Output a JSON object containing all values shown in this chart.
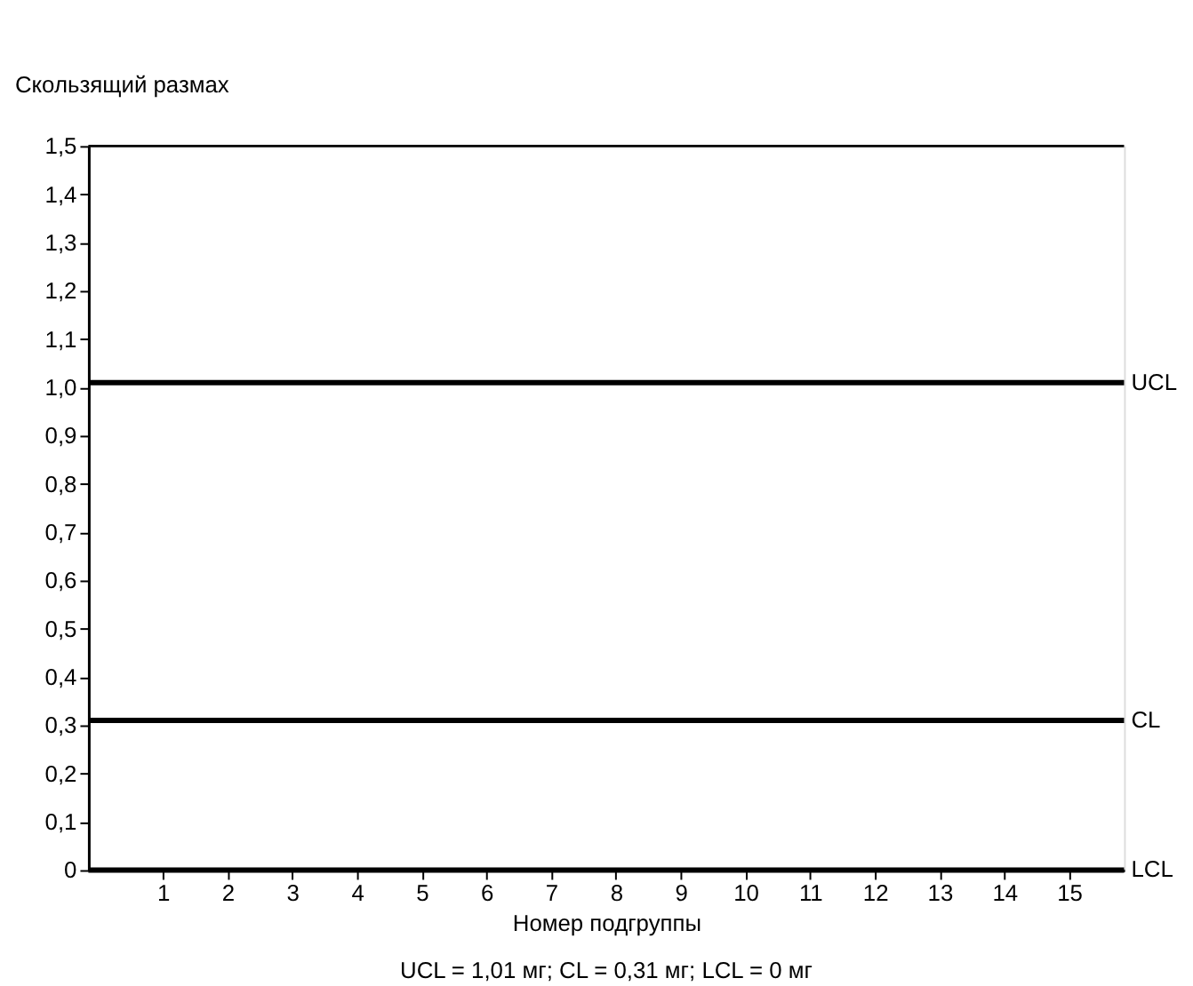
{
  "chart_data": {
    "type": "line",
    "ylabel": "Скользящий размах",
    "xlabel": "Номер подгруппы",
    "xlim": [
      -0.15,
      15.85
    ],
    "xticks": [
      1,
      2,
      3,
      4,
      5,
      6,
      7,
      8,
      9,
      10,
      11,
      12,
      13,
      14,
      15
    ],
    "ylim": [
      0,
      1.5
    ],
    "yticks": [
      {
        "value": 0,
        "label": "0"
      },
      {
        "value": 0.1,
        "label": "0,1"
      },
      {
        "value": 0.2,
        "label": "0,2"
      },
      {
        "value": 0.3,
        "label": "0,3"
      },
      {
        "value": 0.4,
        "label": "0,4"
      },
      {
        "value": 0.5,
        "label": "0,5"
      },
      {
        "value": 0.6,
        "label": "0,6"
      },
      {
        "value": 0.7,
        "label": "0,7"
      },
      {
        "value": 0.8,
        "label": "0,8"
      },
      {
        "value": 0.9,
        "label": "0,9"
      },
      {
        "value": 1.0,
        "label": "1,0"
      },
      {
        "value": 1.1,
        "label": "1,1"
      },
      {
        "value": 1.2,
        "label": "1,2"
      },
      {
        "value": 1.3,
        "label": "1,3"
      },
      {
        "value": 1.4,
        "label": "1,4"
      },
      {
        "value": 1.5,
        "label": "1,5"
      }
    ],
    "ref_lines": [
      {
        "axis": "y",
        "value": 1.01,
        "label": "UCL",
        "color": "#000000"
      },
      {
        "axis": "y",
        "value": 0.31,
        "label": "CL",
        "color": "#000000"
      },
      {
        "axis": "y",
        "value": 0,
        "label": "LCL",
        "color": "#000000"
      }
    ],
    "annotations": [
      "UCL = 1,01 мг; CL = 0,31 мг; LCL = 0 мг"
    ],
    "grid": false
  }
}
